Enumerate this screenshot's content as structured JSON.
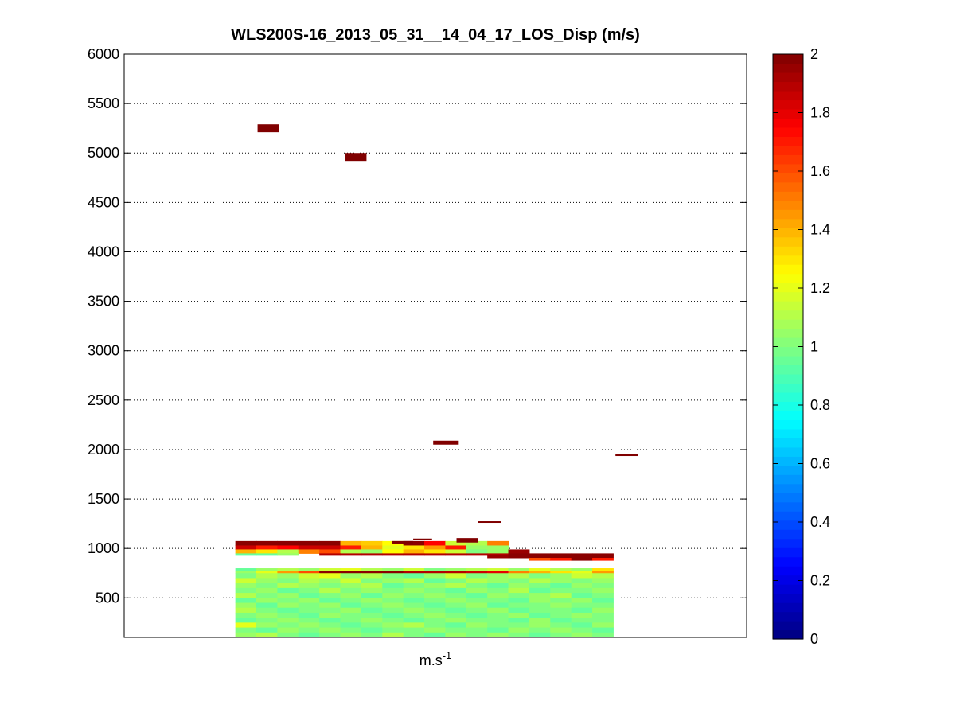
{
  "chart_data": {
    "type": "heatmap",
    "title": "WLS200S-16_2013_05_31__14_04_17_LOS_Disp (m/s)",
    "xlabel_base": "m.s",
    "xlabel_sup": "-1",
    "ylabel": "",
    "ylim": [
      100,
      6000
    ],
    "yticks": [
      500,
      1000,
      1500,
      2000,
      2500,
      3000,
      3500,
      4000,
      4500,
      5000,
      5500,
      6000
    ],
    "ytick_labels": [
      "500",
      "1000",
      "1500",
      "2000",
      "2500",
      "3000",
      "3500",
      "4000",
      "4500",
      "5000",
      "5500",
      "6000"
    ],
    "grid": "y-dotted",
    "colormap": "jet",
    "colorbar": {
      "range": [
        0,
        2
      ],
      "ticks": [
        0,
        0.2,
        0.4,
        0.6,
        0.8,
        1,
        1.2,
        1.4,
        1.6,
        1.8,
        2
      ],
      "tick_labels": [
        "0",
        "0.2",
        "0.4",
        "0.6",
        "0.8",
        "1",
        "1.2",
        "1.4",
        "1.6",
        "1.8",
        "2"
      ]
    },
    "column_count": 18,
    "data_column_range": [
      5,
      22
    ],
    "column_domain": [
      0,
      28
    ],
    "outliers": [
      {
        "col_from": 6,
        "col_to": 6.95,
        "y_low": 5210,
        "y_high": 5290,
        "value": 2
      },
      {
        "col_from": 9.95,
        "col_to": 10.9,
        "y_low": 4920,
        "y_high": 5000,
        "value": 2
      },
      {
        "col_from": 13.9,
        "col_to": 15.05,
        "y_low": 2050,
        "y_high": 2090,
        "value": 2
      },
      {
        "col_from": 22.1,
        "col_to": 23.1,
        "y_low": 1935,
        "y_high": 1955,
        "value": 2
      },
      {
        "col_from": 15.9,
        "col_to": 16.95,
        "y_low": 1260,
        "y_high": 1275,
        "value": 2
      },
      {
        "col_from": 14.95,
        "col_to": 15.9,
        "y_low": 1060,
        "y_high": 1105,
        "value": 2
      },
      {
        "col_from": 13.0,
        "col_to": 13.85,
        "y_low": 1085,
        "y_high": 1100,
        "value": 2
      },
      {
        "col_from": 12.05,
        "col_to": 13.0,
        "y_low": 1050,
        "y_high": 1075,
        "value": 2
      }
    ],
    "rows": [
      {
        "y_low": 1030,
        "y_high": 1075,
        "values": [
          1.98,
          1.98,
          1.98,
          1.98,
          1.98,
          1.4,
          1.35,
          1.25,
          1.98,
          1.75,
          1.15,
          1.1,
          1.5,
          null,
          null,
          null,
          null,
          null
        ]
      },
      {
        "y_low": 990,
        "y_high": 1030,
        "values": [
          1.85,
          1.7,
          1.75,
          1.85,
          1.85,
          1.7,
          1.4,
          1.2,
          1.3,
          1.45,
          1.7,
          1.05,
          1.05,
          null,
          null,
          null,
          null,
          null
        ]
      },
      {
        "y_low": 950,
        "y_high": 990,
        "values": [
          1.4,
          1.3,
          1.1,
          1.5,
          1.6,
          1.1,
          1.05,
          1.25,
          1.4,
          1.3,
          1.15,
          1.0,
          1.05,
          1.95,
          null,
          null,
          null,
          null
        ]
      },
      {
        "y_low": 930,
        "y_high": 950,
        "values": [
          0.95,
          0.95,
          1.05,
          null,
          1.9,
          1.9,
          1.9,
          1.9,
          1.9,
          1.9,
          1.9,
          1.9,
          1.9,
          1.98,
          1.98,
          1.98,
          1.98,
          1.98
        ]
      },
      {
        "y_low": 905,
        "y_high": 930,
        "values": [
          null,
          null,
          null,
          null,
          null,
          null,
          null,
          null,
          null,
          null,
          null,
          null,
          1.95,
          1.98,
          1.98,
          1.98,
          1.98,
          1.98
        ]
      },
      {
        "y_low": 880,
        "y_high": 905,
        "values": [
          null,
          null,
          null,
          null,
          null,
          null,
          null,
          null,
          null,
          null,
          null,
          null,
          null,
          null,
          1.6,
          1.7,
          1.98,
          1.7
        ]
      },
      {
        "y_low": 770,
        "y_high": 800,
        "values": [
          0.95,
          1.05,
          1.1,
          1.05,
          1.15,
          1.2,
          1.1,
          1.05,
          1.15,
          1.0,
          1.05,
          1.1,
          1.15,
          1.05,
          1.2,
          1.1,
          1.05,
          1.3
        ]
      },
      {
        "y_low": 750,
        "y_high": 770,
        "values": [
          1.05,
          1.2,
          1.45,
          1.6,
          1.98,
          1.98,
          1.98,
          1.98,
          1.9,
          1.9,
          1.9,
          1.85,
          1.8,
          1.5,
          1.4,
          1.3,
          1.2,
          1.45
        ]
      },
      {
        "y_low": 700,
        "y_high": 750,
        "values": [
          1.0,
          1.1,
          1.05,
          1.15,
          1.2,
          1.05,
          1.1,
          1.0,
          0.95,
          1.05,
          1.15,
          1.0,
          1.05,
          1.1,
          1.0,
          1.05,
          1.15,
          1.1
        ]
      },
      {
        "y_low": 650,
        "y_high": 700,
        "values": [
          1.15,
          1.05,
          1.0,
          1.1,
          1.05,
          1.15,
          1.0,
          1.05,
          1.1,
          0.95,
          1.0,
          1.1,
          1.05,
          1.0,
          1.1,
          1.05,
          1.0,
          1.05
        ]
      },
      {
        "y_low": 600,
        "y_high": 650,
        "values": [
          1.05,
          1.0,
          1.1,
          1.05,
          1.0,
          1.05,
          1.1,
          0.95,
          1.0,
          1.05,
          1.1,
          1.0,
          0.95,
          1.05,
          1.0,
          0.95,
          1.05,
          1.0
        ]
      },
      {
        "y_low": 550,
        "y_high": 600,
        "values": [
          1.0,
          1.05,
          0.95,
          1.0,
          1.1,
          1.0,
          1.05,
          1.0,
          1.05,
          1.0,
          0.95,
          1.05,
          1.0,
          1.1,
          0.95,
          1.0,
          1.0,
          1.05
        ]
      },
      {
        "y_low": 500,
        "y_high": 550,
        "values": [
          1.1,
          1.0,
          1.05,
          0.95,
          1.0,
          1.05,
          0.95,
          1.05,
          1.0,
          1.05,
          1.0,
          0.95,
          1.05,
          1.0,
          1.05,
          1.1,
          0.95,
          1.0
        ]
      },
      {
        "y_low": 450,
        "y_high": 500,
        "values": [
          0.95,
          1.05,
          1.0,
          1.05,
          0.95,
          1.0,
          1.05,
          1.0,
          0.95,
          1.0,
          1.05,
          1.0,
          1.0,
          0.95,
          1.05,
          1.0,
          1.05,
          0.95
        ]
      },
      {
        "y_low": 400,
        "y_high": 450,
        "values": [
          1.05,
          0.95,
          1.05,
          1.0,
          1.05,
          0.95,
          1.0,
          1.05,
          1.0,
          0.95,
          1.0,
          1.05,
          0.95,
          1.0,
          1.0,
          1.05,
          1.0,
          1.0
        ]
      },
      {
        "y_low": 350,
        "y_high": 400,
        "values": [
          1.1,
          1.0,
          0.95,
          1.0,
          1.0,
          1.05,
          0.95,
          1.0,
          1.05,
          1.0,
          0.95,
          1.0,
          1.05,
          0.95,
          1.0,
          1.0,
          0.95,
          1.05
        ]
      },
      {
        "y_low": 300,
        "y_high": 350,
        "values": [
          1.0,
          1.05,
          1.0,
          0.95,
          1.05,
          1.0,
          1.0,
          0.95,
          1.0,
          1.05,
          1.0,
          0.95,
          1.0,
          1.05,
          0.95,
          1.0,
          1.05,
          1.0
        ]
      },
      {
        "y_low": 250,
        "y_high": 300,
        "values": [
          0.95,
          1.0,
          1.05,
          1.0,
          0.95,
          1.0,
          1.05,
          1.0,
          0.95,
          1.0,
          1.05,
          1.0,
          1.0,
          0.95,
          1.05,
          0.95,
          1.0,
          1.0
        ]
      },
      {
        "y_low": 200,
        "y_high": 250,
        "values": [
          1.2,
          1.05,
          1.0,
          1.05,
          1.0,
          0.95,
          1.0,
          1.05,
          1.1,
          1.0,
          0.95,
          1.05,
          1.0,
          1.0,
          1.05,
          1.0,
          0.95,
          1.05
        ]
      },
      {
        "y_low": 150,
        "y_high": 200,
        "values": [
          1.0,
          0.95,
          1.05,
          1.0,
          1.05,
          1.0,
          0.95,
          1.0,
          1.0,
          1.05,
          1.0,
          1.0,
          0.95,
          1.05,
          1.0,
          1.05,
          1.0,
          0.95
        ]
      },
      {
        "y_low": 100,
        "y_high": 150,
        "values": [
          1.05,
          1.1,
          1.0,
          0.95,
          1.0,
          1.05,
          1.0,
          1.1,
          1.0,
          0.95,
          1.05,
          1.0,
          1.05,
          1.0,
          0.95,
          1.0,
          1.05,
          1.0
        ]
      }
    ]
  }
}
